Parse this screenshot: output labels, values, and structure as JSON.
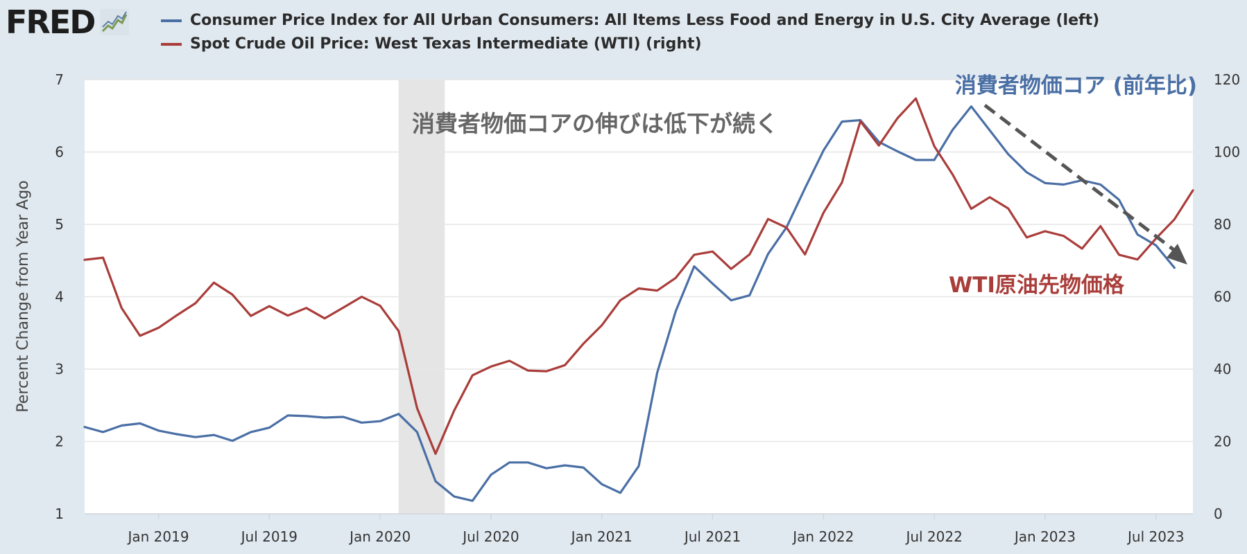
{
  "logo": {
    "text": "FRED",
    "icon": "chart-line-icon"
  },
  "legend": [
    {
      "label": "Consumer Price Index for All Urban Consumers: All Items Less Food and Energy in U.S. City Average (left)",
      "color": "#4a6fa5"
    },
    {
      "label": "Spot Crude Oil Price: West Texas Intermediate (WTI) (right)",
      "color": "#a93d3a"
    }
  ],
  "chart_data": {
    "type": "line",
    "ylabel": "Percent Change from Year Ago",
    "ylim_left": [
      1,
      7
    ],
    "ylim_right": [
      0,
      120
    ],
    "yticks_left": [
      1,
      2,
      3,
      4,
      5,
      6,
      7
    ],
    "yticks_right": [
      0,
      20,
      40,
      60,
      80,
      100,
      120
    ],
    "xlim": [
      "2018-09",
      "2023-09"
    ],
    "xticks": [
      {
        "date": "2019-01",
        "label": "Jan 2019"
      },
      {
        "date": "2019-07",
        "label": "Jul 2019"
      },
      {
        "date": "2020-01",
        "label": "Jan 2020"
      },
      {
        "date": "2020-07",
        "label": "Jul 2020"
      },
      {
        "date": "2021-01",
        "label": "Jan 2021"
      },
      {
        "date": "2021-07",
        "label": "Jul 2021"
      },
      {
        "date": "2022-01",
        "label": "Jan 2022"
      },
      {
        "date": "2022-07",
        "label": "Jul 2022"
      },
      {
        "date": "2023-01",
        "label": "Jan 2023"
      },
      {
        "date": "2023-07",
        "label": "Jul 2023"
      }
    ],
    "recession": {
      "start": "2020-02",
      "end": "2020-04",
      "color": "#e5e5e5"
    },
    "grid": true,
    "series": [
      {
        "name": "Consumer Price Index for All Urban Consumers: All Items Less Food and Energy in U.S. City Average",
        "axis": "left",
        "color": "#4a6fa5",
        "start": "2018-09",
        "values": [
          2.2,
          2.13,
          2.22,
          2.25,
          2.15,
          2.1,
          2.06,
          2.09,
          2.01,
          2.13,
          2.19,
          2.36,
          2.35,
          2.33,
          2.34,
          2.26,
          2.28,
          2.38,
          2.13,
          1.45,
          1.24,
          1.18,
          1.54,
          1.71,
          1.71,
          1.63,
          1.67,
          1.64,
          1.41,
          1.29,
          1.66,
          2.95,
          3.8,
          4.42,
          4.18,
          3.95,
          4.02,
          4.59,
          4.96,
          5.5,
          6.02,
          6.42,
          6.44,
          6.14,
          6.01,
          5.89,
          5.89,
          6.31,
          6.63,
          6.3,
          5.97,
          5.72,
          5.57,
          5.55,
          5.61,
          5.55,
          5.34,
          4.86,
          4.71,
          4.4
        ]
      },
      {
        "name": "Spot Crude Oil Price: West Texas Intermediate (WTI)",
        "axis": "right",
        "color": "#a93d3a",
        "start": "2018-09",
        "values": [
          70.2,
          70.8,
          56.9,
          49.2,
          51.4,
          54.9,
          58.2,
          63.9,
          60.6,
          54.7,
          57.4,
          54.8,
          56.9,
          54.0,
          57.0,
          60.0,
          57.5,
          50.5,
          29.2,
          16.6,
          28.5,
          38.3,
          40.7,
          42.3,
          39.6,
          39.4,
          41.1,
          47.0,
          52.1,
          59.0,
          62.3,
          61.7,
          65.2,
          71.6,
          72.5,
          67.7,
          71.7,
          81.5,
          79.1,
          71.7,
          83.2,
          91.6,
          108.5,
          101.8,
          109.3,
          114.8,
          101.6,
          93.7,
          84.3,
          87.5,
          84.4,
          76.4,
          78.1,
          76.8,
          73.3,
          79.5,
          71.6,
          70.3,
          76.1,
          81.4,
          89.4
        ]
      }
    ],
    "annotations": [
      {
        "text": "消費者物価コアの伸びは低下が続く",
        "color": "#666666"
      },
      {
        "text": "消費者物価コア (前年比)",
        "color": "#4a6fa5"
      },
      {
        "text": "WTI原油先物価格",
        "color": "#a93d3a"
      }
    ]
  }
}
